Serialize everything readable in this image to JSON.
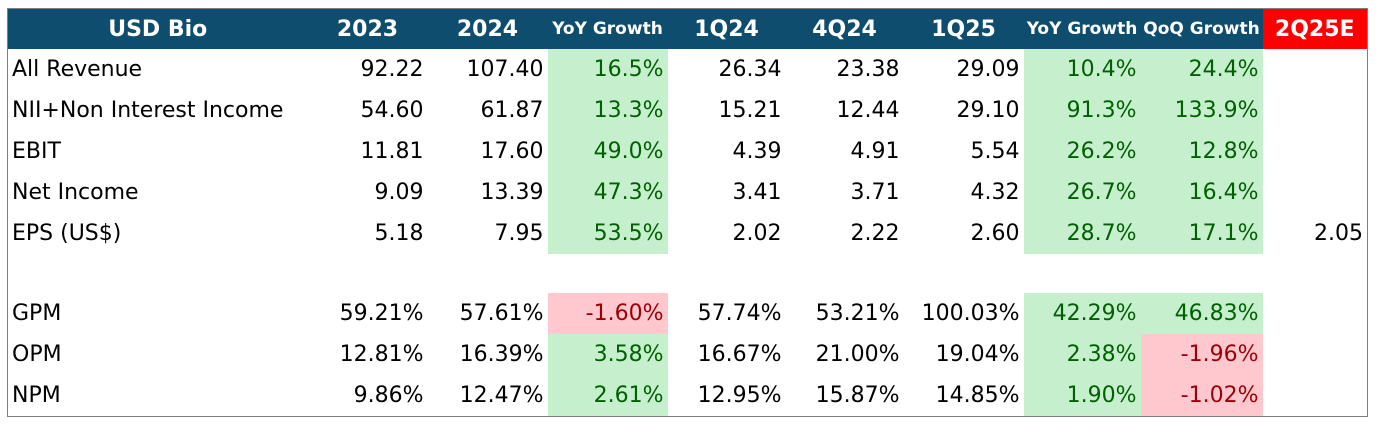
{
  "headers": [
    "USD Bio",
    "2023",
    "2024",
    "YoY Growth",
    "1Q24",
    "4Q24",
    "1Q25",
    "YoY Growth",
    "QoQ Growth",
    "2Q25E"
  ],
  "rows": [
    {
      "label": "All Revenue",
      "cells": [
        "92.22",
        "107.40",
        "16.5%",
        "26.34",
        "23.38",
        "29.09",
        "10.4%",
        "24.4%",
        ""
      ]
    },
    {
      "label": "NII+Non Interest Income",
      "cells": [
        "54.60",
        "61.87",
        "13.3%",
        "15.21",
        "12.44",
        "29.10",
        "91.3%",
        "133.9%",
        ""
      ]
    },
    {
      "label": "EBIT",
      "cells": [
        "11.81",
        "17.60",
        "49.0%",
        "4.39",
        "4.91",
        "5.54",
        "26.2%",
        "12.8%",
        ""
      ]
    },
    {
      "label": "Net Income",
      "cells": [
        "9.09",
        "13.39",
        "47.3%",
        "3.41",
        "3.71",
        "4.32",
        "26.7%",
        "16.4%",
        ""
      ]
    },
    {
      "label": "EPS (US$)",
      "cells": [
        "5.18",
        "7.95",
        "53.5%",
        "2.02",
        "2.22",
        "2.60",
        "28.7%",
        "17.1%",
        "2.05"
      ]
    },
    {
      "label": "",
      "cells": [
        "",
        "",
        "",
        "",
        "",
        "",
        "",
        "",
        ""
      ]
    },
    {
      "label": "GPM",
      "cells": [
        "59.21%",
        "57.61%",
        "-1.60%",
        "57.74%",
        "53.21%",
        "100.03%",
        "42.29%",
        "46.83%",
        ""
      ]
    },
    {
      "label": "OPM",
      "cells": [
        "12.81%",
        "16.39%",
        "3.58%",
        "16.67%",
        "21.00%",
        "19.04%",
        "2.38%",
        "-1.96%",
        ""
      ]
    },
    {
      "label": "NPM",
      "cells": [
        "9.86%",
        "12.47%",
        "2.61%",
        "12.95%",
        "15.87%",
        "14.85%",
        "1.90%",
        "-1.02%",
        ""
      ]
    }
  ],
  "colors": {
    "header_bg": "#0e4d6e",
    "estimate_bg": "#ff0000",
    "positive_bg": "#c6efce",
    "positive_text": "#006100",
    "negative_bg": "#ffc7ce",
    "negative_text": "#9c0006"
  }
}
